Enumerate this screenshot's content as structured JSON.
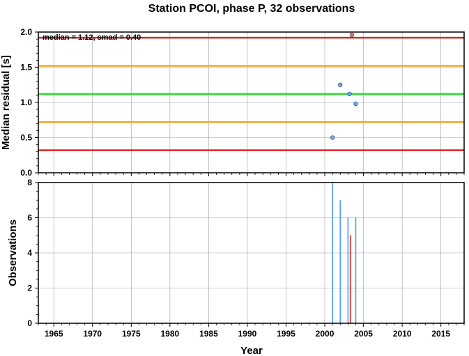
{
  "chart_data": [
    {
      "type": "scatter",
      "title": "Station PCOI, phase P, 32 observations",
      "annotation": "median = 1.12, smad = 0.40",
      "xlabel": "",
      "ylabel": "Median residual [s]",
      "xlim": [
        1963,
        2018
      ],
      "ylim": [
        0,
        2
      ],
      "yticks": [
        "0.0",
        "0.5",
        "1.0",
        "1.5",
        "2.0"
      ],
      "grid": true,
      "reference_lines": [
        {
          "value": 1.12,
          "color": "#22e022"
        },
        {
          "value": 1.52,
          "color": "#f5a623"
        },
        {
          "value": 0.72,
          "color": "#f5a623"
        },
        {
          "value": 1.92,
          "color": "#e02020"
        },
        {
          "value": 0.32,
          "color": "#e02020"
        }
      ],
      "series": [
        {
          "color": "#6fa8ff",
          "points": [
            {
              "x": 2001.0,
              "y": 0.5
            },
            {
              "x": 2002.0,
              "y": 1.25
            },
            {
              "x": 2003.2,
              "y": 1.12
            },
            {
              "x": 2004.0,
              "y": 0.98
            }
          ]
        },
        {
          "color": "#f07070",
          "points": [
            {
              "x": 2003.5,
              "y": 1.96
            }
          ]
        }
      ]
    },
    {
      "type": "bar",
      "xlabel": "Year",
      "ylabel": "Observations",
      "xlim": [
        1963,
        2018
      ],
      "ylim": [
        0,
        8
      ],
      "xticks": [
        "1965",
        "1970",
        "1975",
        "1980",
        "1985",
        "1990",
        "1995",
        "2000",
        "2005",
        "2010",
        "2015"
      ],
      "yticks": [
        "0",
        "2",
        "4",
        "6",
        "8"
      ],
      "grid": true,
      "series": [
        {
          "color": "#4a9fe8",
          "bars": [
            {
              "x": 2001.0,
              "value": 8
            },
            {
              "x": 2002.0,
              "value": 7
            },
            {
              "x": 2003.0,
              "value": 6
            },
            {
              "x": 2004.0,
              "value": 6
            }
          ]
        },
        {
          "color": "#e02020",
          "bars": [
            {
              "x": 2003.3,
              "value": 5
            }
          ]
        }
      ]
    }
  ]
}
